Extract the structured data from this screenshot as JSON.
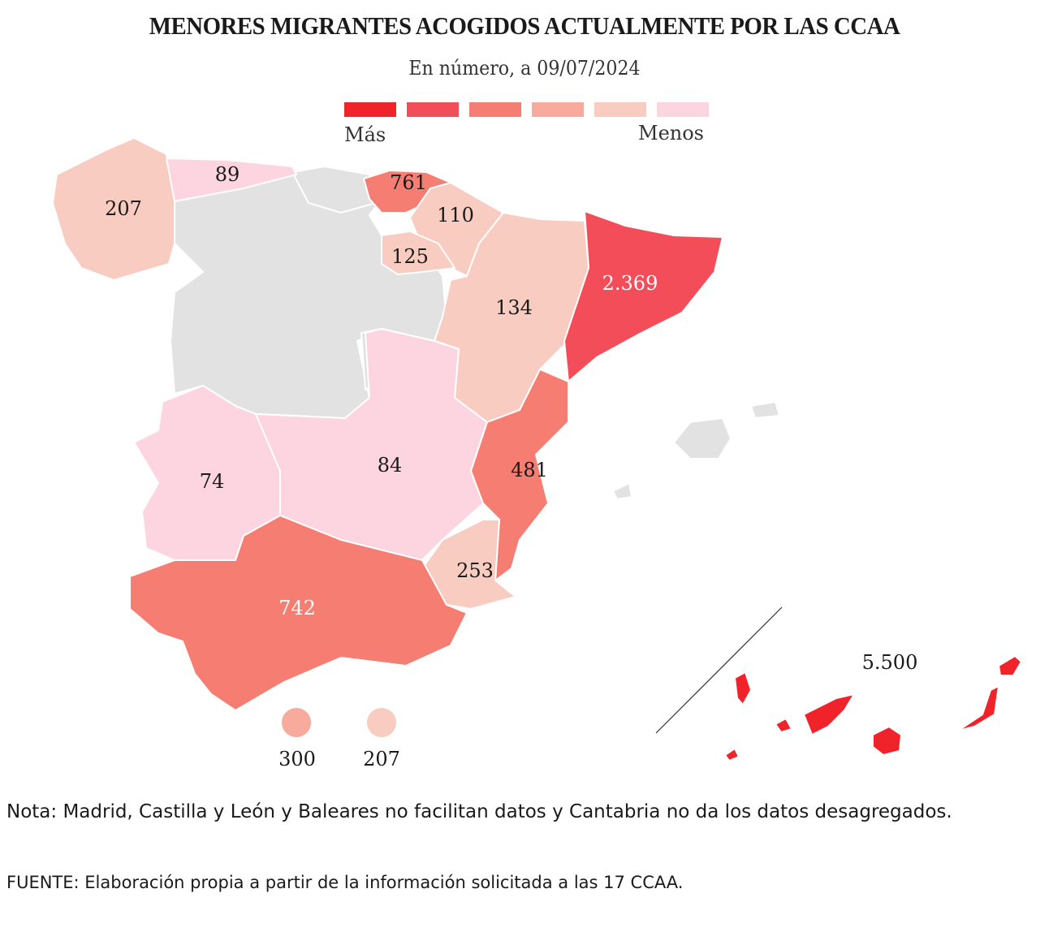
{
  "title": "MENORES MIGRANTES ACOGIDOS ACTUALMENTE POR LAS CCAA",
  "subtitle": "En número, a 09/07/2024",
  "legend": {
    "colors": [
      "#f0232b",
      "#f44d5a",
      "#f57d71",
      "#f8aa9c",
      "#f8ccc0",
      "#fdd5e0"
    ],
    "label_more": "Más",
    "label_less": "Menos"
  },
  "colors": {
    "no_data": "#e2e2e2",
    "level1": "#f0232b",
    "level2": "#f44d5a",
    "level3": "#f57d71",
    "level4": "#f8aa9c",
    "level5": "#f8ccc0",
    "level6": "#fdd5e0"
  },
  "regions": {
    "galicia": "207",
    "asturias": "89",
    "pais_vasco": "761",
    "navarra": "110",
    "la_rioja": "125",
    "aragon": "134",
    "cataluna": "2.369",
    "extremadura": "74",
    "castilla_la_mancha": "84",
    "comunidad_valenciana": "481",
    "murcia": "253",
    "andalucia": "742",
    "canarias": "5.500",
    "ceuta": "300",
    "melilla": "207"
  },
  "note": "Nota: Madrid, Castilla y León y Baleares no facilitan datos y Cantabria no da los datos desagregados.",
  "source_label": "FUENTE:",
  "source_text": " Elaboración propia a partir de la información solicitada a las 17 CCAA."
}
